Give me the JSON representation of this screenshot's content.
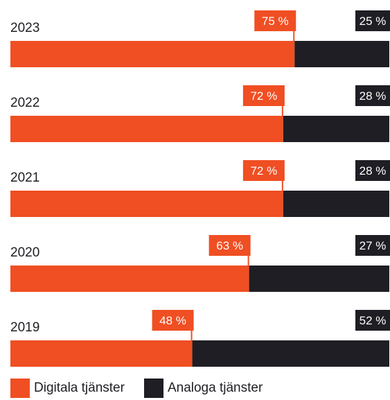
{
  "chart_data": {
    "type": "bar",
    "orientation": "horizontal",
    "stacked": true,
    "categories": [
      "2023",
      "2022",
      "2021",
      "2020",
      "2019"
    ],
    "series": [
      {
        "name": "Digitala tjänster",
        "values": [
          75,
          72,
          72,
          63,
          48
        ],
        "labels": [
          "75 %",
          "72 %",
          "72 %",
          "63 %",
          "48 %"
        ]
      },
      {
        "name": "Analoga tjänster",
        "values": [
          25,
          28,
          28,
          27,
          52
        ],
        "labels": [
          "25 %",
          "28 %",
          "28 %",
          "27 %",
          "52 %"
        ]
      }
    ],
    "xlim": [
      0,
      100
    ],
    "grid": false,
    "legend_position": "bottom-left"
  },
  "colors": {
    "digital": "#f04e23",
    "analog": "#1e1e24",
    "label_text": "#ffffff",
    "year_text": "#1e1e24"
  }
}
